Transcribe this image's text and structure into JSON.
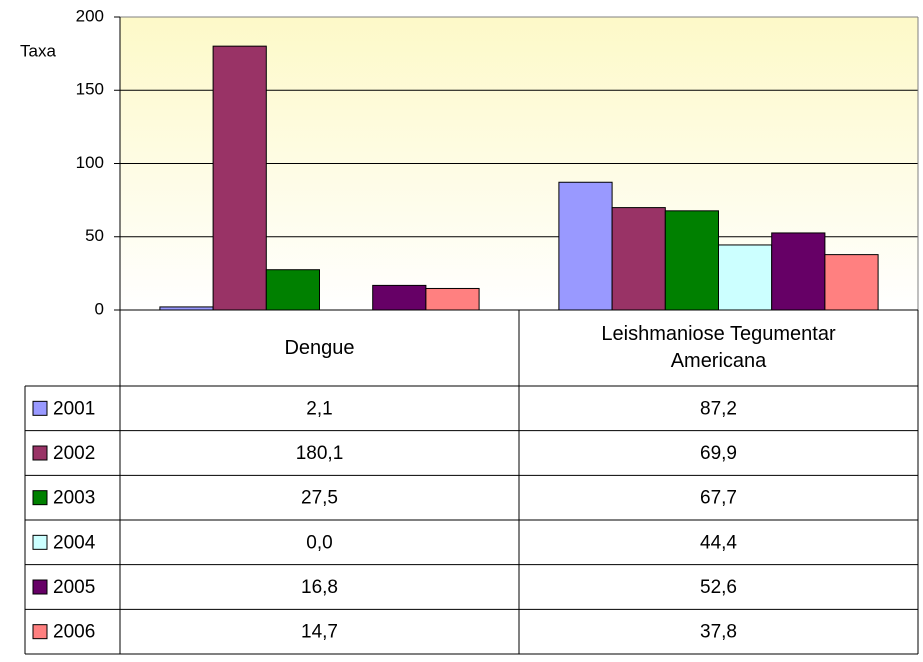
{
  "chart_data": {
    "type": "bar",
    "y_label": "Taxa",
    "categories": [
      "Dengue",
      "Leishmaniose Tegumentar Americana"
    ],
    "series": [
      {
        "name": "2001",
        "color": "#9999ff",
        "values": [
          2.1,
          87.2
        ],
        "value_labels": [
          "2,1",
          "87,2"
        ]
      },
      {
        "name": "2002",
        "color": "#993366",
        "values": [
          180.1,
          69.9
        ],
        "value_labels": [
          "180,1",
          "69,9"
        ]
      },
      {
        "name": "2003",
        "color": "#008000",
        "values": [
          27.5,
          67.7
        ],
        "value_labels": [
          "27,5",
          "67,7"
        ]
      },
      {
        "name": "2004",
        "color": "#ccffff",
        "values": [
          0.0,
          44.4
        ],
        "value_labels": [
          "0,0",
          "44,4"
        ]
      },
      {
        "name": "2005",
        "color": "#660066",
        "values": [
          16.8,
          52.6
        ],
        "value_labels": [
          "16,8",
          "52,6"
        ]
      },
      {
        "name": "2006",
        "color": "#ff8080",
        "values": [
          14.7,
          37.8
        ],
        "value_labels": [
          "14,7",
          "37,8"
        ]
      }
    ],
    "ylim": [
      0,
      200
    ],
    "yticks": [
      0,
      50,
      100,
      150,
      200
    ],
    "grid": true
  }
}
